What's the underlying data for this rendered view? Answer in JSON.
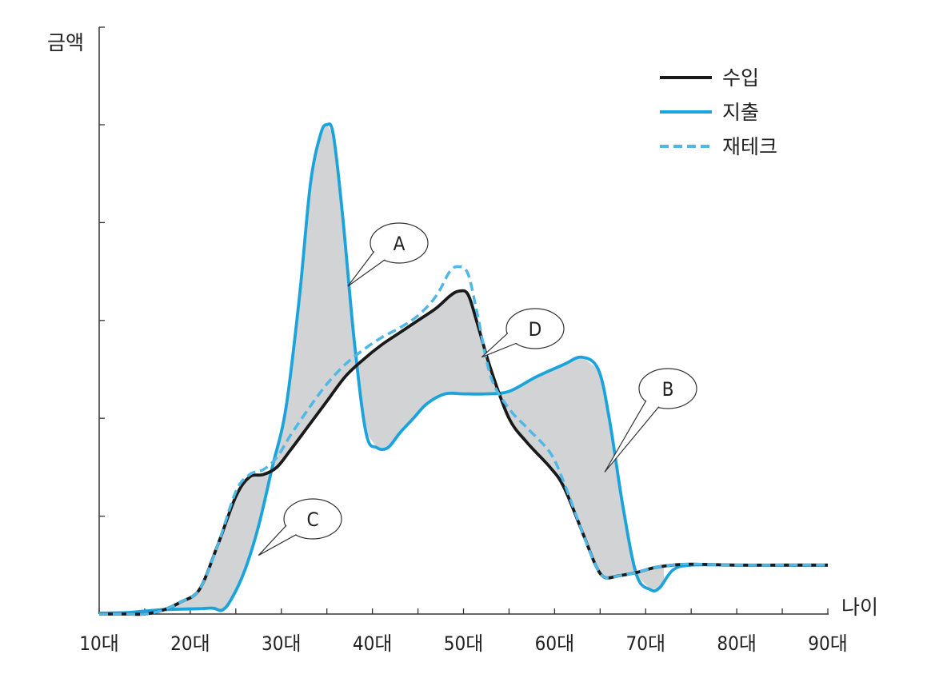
{
  "chart_data": {
    "type": "line",
    "ylabel": "금액",
    "xlabel": "나이",
    "categories": [
      "10대",
      "20대",
      "30대",
      "40대",
      "50대",
      "60대",
      "70대",
      "80대",
      "90대"
    ],
    "xlim": [
      10,
      90
    ],
    "ylim": [
      0,
      100
    ],
    "grid": false,
    "legend_position": "top-right",
    "series": [
      {
        "name": "수입",
        "color": "#1a1a1a",
        "style": "solid",
        "x": [
          10,
          13,
          15,
          17,
          19,
          21,
          23,
          25,
          26.5,
          28,
          29.5,
          31,
          33,
          35,
          37,
          39,
          41,
          43,
          45,
          47,
          48.5,
          49.5,
          50.5,
          51.5,
          53,
          55,
          57,
          59.5,
          61,
          63,
          64.5,
          65.5,
          67,
          69,
          71,
          73,
          75,
          80,
          85,
          90
        ],
        "values": [
          0,
          0,
          0,
          0.8,
          2.5,
          5,
          14,
          24,
          28,
          28.5,
          30,
          33.5,
          38.5,
          43.5,
          48.5,
          52,
          55,
          57.5,
          60,
          62.5,
          65,
          66,
          65.3,
          59.5,
          50,
          40,
          35,
          30,
          26,
          17,
          10,
          7.5,
          7.8,
          8.5,
          9.5,
          10,
          10.2,
          10,
          10,
          10
        ]
      },
      {
        "name": "지출",
        "color": "#1ba3dc",
        "style": "solid",
        "x": [
          10,
          13,
          15,
          17,
          19,
          21,
          22.5,
          23.5,
          24.5,
          26,
          27.5,
          29,
          30.5,
          32,
          33.2,
          34.3,
          35,
          35.7,
          36.7,
          38,
          39.3,
          40.5,
          41.7,
          43,
          44.5,
          46,
          48,
          50,
          52.5,
          55,
          58,
          61,
          63,
          64.8,
          66,
          67.5,
          69,
          70.5,
          71.5,
          73,
          75,
          80,
          90
        ],
        "values": [
          0.2,
          0.3,
          0.6,
          0.9,
          1,
          1.1,
          1.2,
          0.8,
          3,
          9,
          18,
          30,
          42,
          65,
          88,
          98,
          100,
          98,
          82,
          56,
          37,
          34,
          34,
          37,
          40,
          43,
          45,
          45,
          45,
          45.5,
          48.5,
          51,
          52.5,
          50,
          40,
          22,
          8,
          5,
          5.3,
          9,
          10,
          10,
          10
        ]
      },
      {
        "name": "재테크",
        "color": "#4fb8e6",
        "style": "dashed",
        "x": [
          10,
          13,
          15,
          17,
          19,
          21,
          23,
          25,
          26.5,
          28,
          29.5,
          31,
          33,
          35,
          37,
          39,
          41,
          43,
          45,
          47,
          48.5,
          49.5,
          50.5,
          51.5,
          53,
          55,
          57,
          59.5,
          61,
          63,
          64.5,
          65.5,
          67,
          69,
          71,
          73,
          75,
          80,
          85,
          90
        ],
        "values": [
          0,
          0,
          0,
          0.8,
          2.5,
          5,
          14,
          25,
          28.5,
          29.5,
          32,
          36.5,
          42,
          47,
          51,
          54,
          56.5,
          58.5,
          61,
          65,
          70,
          71,
          69.5,
          61.5,
          48.5,
          42,
          38,
          33,
          27,
          17,
          10,
          7.5,
          7.8,
          8.5,
          9.5,
          10,
          10.2,
          10,
          10,
          10
        ]
      }
    ],
    "annotations": [
      {
        "label": "A",
        "target_x": 37.3,
        "target_y": 67
      },
      {
        "label": "B",
        "target_x": 65.5,
        "target_y": 29
      },
      {
        "label": "C",
        "target_x": 27.5,
        "target_y": 12
      },
      {
        "label": "D",
        "target_x": 52,
        "target_y": 52.5
      }
    ]
  }
}
